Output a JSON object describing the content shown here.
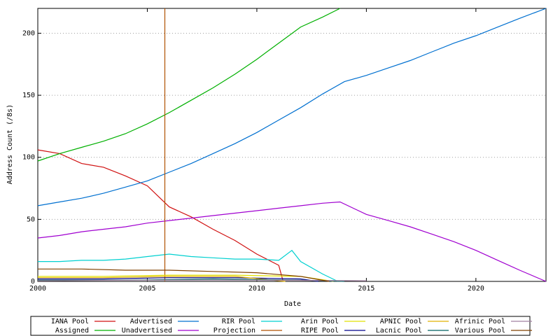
{
  "chart_data": {
    "type": "line",
    "x_label": "Date",
    "y_label": "Address Count (/8s)",
    "xlim": [
      2000,
      2023.2
    ],
    "xticks": [
      2000,
      2005,
      2010,
      2015,
      2020
    ],
    "ylim": [
      0,
      220
    ],
    "yticks": [
      0,
      50,
      100,
      150,
      200
    ],
    "grid": true,
    "series": [
      {
        "name": "IANA Pool",
        "color": "#d01010",
        "x": [
          2000,
          2001,
          2002,
          2003,
          2004,
          2005,
          2006,
          2007,
          2008,
          2009,
          2010,
          2011,
          2011.2
        ],
        "values": [
          106,
          103,
          95,
          92,
          85,
          77,
          60,
          52,
          42,
          33,
          22,
          13,
          0
        ]
      },
      {
        "name": "Assigned",
        "color": "#00b000",
        "x": [
          2000,
          2001,
          2002,
          2003,
          2004,
          2005,
          2006,
          2007,
          2008,
          2009,
          2010,
          2011,
          2012,
          2013,
          2013.8
        ],
        "values": [
          97,
          103,
          108,
          113,
          119,
          127,
          136,
          146,
          156,
          167,
          179,
          192,
          205,
          213,
          220
        ]
      },
      {
        "name": "Advertised",
        "color": "#0070d0",
        "x": [
          2000,
          2001,
          2002,
          2003,
          2004,
          2005,
          2006,
          2007,
          2008,
          2009,
          2010,
          2011,
          2012,
          2013,
          2014,
          2015,
          2016,
          2017,
          2018,
          2019,
          2020,
          2021,
          2022,
          2023.2
        ],
        "values": [
          61,
          64,
          67,
          71,
          76,
          81,
          88,
          95,
          103,
          111,
          120,
          130,
          140,
          151,
          161,
          166,
          172,
          178,
          185,
          192,
          198,
          205,
          212,
          220
        ]
      },
      {
        "name": "Unadvertised",
        "color": "#a000d0",
        "x": [
          2000,
          2001,
          2002,
          2003,
          2004,
          2005,
          2006,
          2007,
          2008,
          2009,
          2010,
          2011,
          2012,
          2013,
          2013.8,
          2015,
          2016,
          2017,
          2018,
          2019,
          2020,
          2021,
          2022,
          2023.2
        ],
        "values": [
          35,
          37,
          40,
          42,
          44,
          47,
          49,
          51,
          53,
          55,
          57,
          59,
          61,
          63,
          64,
          54,
          49,
          44,
          38,
          32,
          25,
          17,
          9,
          0
        ]
      },
      {
        "name": "RIR Pool",
        "color": "#00d0d0",
        "x": [
          2000,
          2001,
          2002,
          2003,
          2004,
          2005,
          2006,
          2007,
          2008,
          2009,
          2010,
          2011,
          2011.6,
          2012,
          2013,
          2013.7
        ],
        "values": [
          16,
          16,
          17,
          17,
          18,
          20,
          22,
          20,
          19,
          18,
          18,
          17,
          25,
          16,
          6,
          0
        ]
      },
      {
        "name": "Projection",
        "color": "#b05000",
        "x": [
          2005.8,
          2005.8
        ],
        "values": [
          0,
          220
        ]
      },
      {
        "name": "Arin Pool",
        "color": "#e0e000",
        "x": [
          2000,
          2003,
          2006,
          2009,
          2012,
          2013.5
        ],
        "values": [
          4,
          4,
          5,
          5,
          4,
          0
        ]
      },
      {
        "name": "RIPE Pool",
        "color": "#00008b",
        "x": [
          2000,
          2003,
          2006,
          2009,
          2012,
          2012.8
        ],
        "values": [
          2,
          2,
          3,
          3,
          2,
          0
        ]
      },
      {
        "name": "APNIC Pool",
        "color": "#e0b000",
        "x": [
          2000,
          2003,
          2006,
          2009,
          2011.3
        ],
        "values": [
          3,
          3,
          4,
          4,
          0
        ]
      },
      {
        "name": "Lacnic Pool",
        "color": "#006060",
        "x": [
          2000,
          2004,
          2008,
          2012,
          2014
        ],
        "values": [
          1,
          1,
          2,
          1,
          0
        ]
      },
      {
        "name": "Afrinic Pool",
        "color": "#a080a0",
        "x": [
          2000,
          2005,
          2010,
          2015
        ],
        "values": [
          0.5,
          1,
          1,
          0.5
        ]
      },
      {
        "name": "Various Pool",
        "color": "#804000",
        "x": [
          2000,
          2002,
          2004,
          2006,
          2008,
          2010,
          2012,
          2013.3
        ],
        "values": [
          10,
          10,
          9,
          9,
          8,
          7,
          4,
          0
        ]
      }
    ]
  }
}
